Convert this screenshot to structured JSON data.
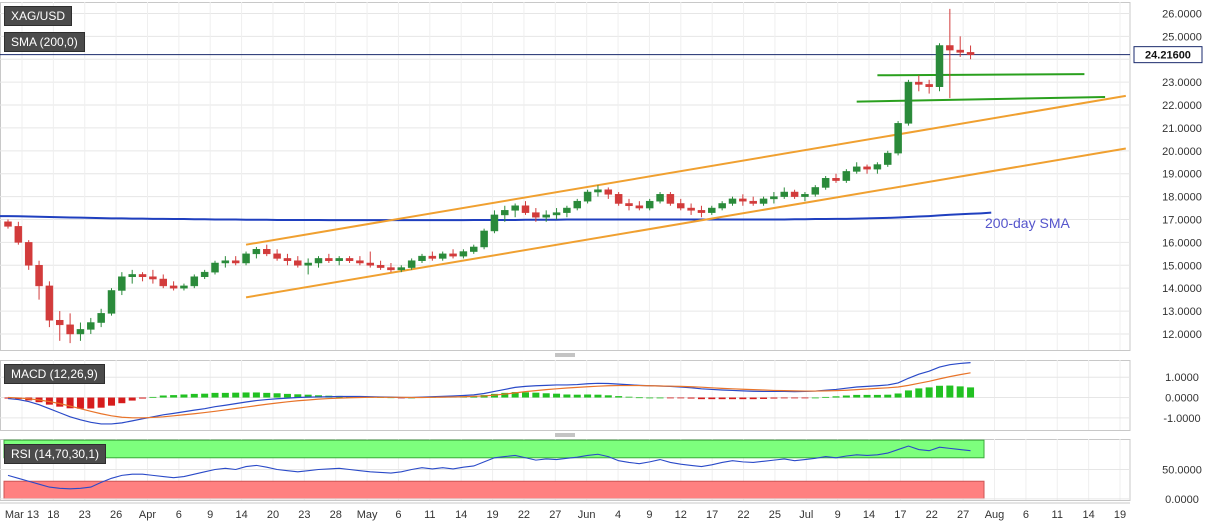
{
  "symbol": "XAG/USD",
  "last_price": "24.21600",
  "chart_data": {
    "type": "candlestick",
    "x_ticks": [
      "Mar 13",
      "18",
      "23",
      "26",
      "Apr",
      "6",
      "9",
      "14",
      "20",
      "23",
      "28",
      "May",
      "6",
      "11",
      "14",
      "19",
      "22",
      "27",
      "Jun",
      "4",
      "9",
      "12",
      "17",
      "22",
      "25",
      "Jul",
      "9",
      "14",
      "17",
      "22",
      "27",
      "Aug",
      "6",
      "11",
      "14",
      "19"
    ],
    "price_ticks": [
      12,
      13,
      14,
      15,
      16,
      17,
      18,
      19,
      20,
      21,
      22,
      23,
      24,
      25,
      26
    ],
    "price_tick_labels": [
      "12.0000",
      "13.0000",
      "14.0000",
      "15.0000",
      "16.0000",
      "17.0000",
      "18.0000",
      "19.0000",
      "20.0000",
      "21.0000",
      "22.0000",
      "23.0000",
      "24.0000",
      "25.0000",
      "26.0000"
    ],
    "price_range": [
      11.3,
      26.5
    ],
    "candles": [
      [
        16.9,
        17.0,
        16.6,
        16.7
      ],
      [
        16.7,
        16.9,
        15.9,
        16.0
      ],
      [
        16.0,
        16.1,
        14.8,
        15.0
      ],
      [
        15.0,
        15.2,
        13.5,
        14.1
      ],
      [
        14.1,
        14.3,
        12.3,
        12.6
      ],
      [
        12.6,
        13.0,
        11.7,
        12.4
      ],
      [
        12.4,
        12.9,
        11.6,
        12.0
      ],
      [
        12.0,
        12.5,
        11.7,
        12.2
      ],
      [
        12.2,
        12.7,
        12.0,
        12.5
      ],
      [
        12.5,
        13.1,
        12.3,
        12.9
      ],
      [
        12.9,
        14.0,
        12.8,
        13.9
      ],
      [
        13.9,
        14.7,
        13.7,
        14.5
      ],
      [
        14.5,
        14.8,
        14.2,
        14.6
      ],
      [
        14.6,
        14.7,
        14.3,
        14.5
      ],
      [
        14.5,
        14.8,
        14.2,
        14.4
      ],
      [
        14.4,
        14.6,
        14.0,
        14.1
      ],
      [
        14.1,
        14.3,
        13.9,
        14.0
      ],
      [
        14.0,
        14.2,
        13.9,
        14.1
      ],
      [
        14.1,
        14.6,
        14.0,
        14.5
      ],
      [
        14.5,
        14.8,
        14.4,
        14.7
      ],
      [
        14.7,
        15.2,
        14.6,
        15.1
      ],
      [
        15.1,
        15.4,
        14.9,
        15.2
      ],
      [
        15.2,
        15.4,
        15.0,
        15.1
      ],
      [
        15.1,
        15.6,
        15.0,
        15.5
      ],
      [
        15.5,
        15.8,
        15.3,
        15.7
      ],
      [
        15.7,
        15.9,
        15.4,
        15.5
      ],
      [
        15.5,
        15.7,
        15.2,
        15.3
      ],
      [
        15.3,
        15.5,
        15.0,
        15.2
      ],
      [
        15.2,
        15.4,
        14.9,
        15.0
      ],
      [
        15.0,
        15.3,
        14.6,
        15.1
      ],
      [
        15.1,
        15.4,
        14.9,
        15.3
      ],
      [
        15.3,
        15.5,
        15.1,
        15.2
      ],
      [
        15.2,
        15.4,
        15.0,
        15.3
      ],
      [
        15.3,
        15.4,
        15.1,
        15.2
      ],
      [
        15.2,
        15.4,
        15.0,
        15.1
      ],
      [
        15.1,
        15.6,
        14.9,
        15.0
      ],
      [
        15.0,
        15.2,
        14.8,
        14.9
      ],
      [
        14.9,
        15.1,
        14.7,
        14.8
      ],
      [
        14.8,
        15.0,
        14.7,
        14.9
      ],
      [
        14.9,
        15.3,
        14.8,
        15.2
      ],
      [
        15.2,
        15.5,
        15.1,
        15.4
      ],
      [
        15.4,
        15.6,
        15.2,
        15.3
      ],
      [
        15.3,
        15.6,
        15.2,
        15.5
      ],
      [
        15.5,
        15.7,
        15.3,
        15.4
      ],
      [
        15.4,
        15.7,
        15.3,
        15.6
      ],
      [
        15.6,
        15.9,
        15.5,
        15.8
      ],
      [
        15.8,
        16.6,
        15.7,
        16.5
      ],
      [
        16.5,
        17.4,
        16.4,
        17.2
      ],
      [
        17.2,
        17.6,
        16.9,
        17.4
      ],
      [
        17.4,
        17.7,
        17.1,
        17.6
      ],
      [
        17.6,
        17.8,
        17.2,
        17.3
      ],
      [
        17.3,
        17.5,
        16.9,
        17.1
      ],
      [
        17.1,
        17.4,
        16.9,
        17.2
      ],
      [
        17.2,
        17.5,
        17.0,
        17.3
      ],
      [
        17.3,
        17.6,
        17.1,
        17.5
      ],
      [
        17.5,
        17.9,
        17.4,
        17.8
      ],
      [
        17.8,
        18.3,
        17.7,
        18.2
      ],
      [
        18.2,
        18.5,
        18.0,
        18.3
      ],
      [
        18.3,
        18.4,
        17.9,
        18.1
      ],
      [
        18.1,
        18.2,
        17.6,
        17.7
      ],
      [
        17.7,
        17.9,
        17.4,
        17.6
      ],
      [
        17.6,
        17.8,
        17.4,
        17.5
      ],
      [
        17.5,
        17.9,
        17.4,
        17.8
      ],
      [
        17.8,
        18.2,
        17.7,
        18.1
      ],
      [
        18.1,
        18.2,
        17.6,
        17.7
      ],
      [
        17.7,
        17.9,
        17.4,
        17.5
      ],
      [
        17.5,
        17.7,
        17.2,
        17.4
      ],
      [
        17.4,
        17.6,
        17.1,
        17.3
      ],
      [
        17.3,
        17.6,
        17.2,
        17.5
      ],
      [
        17.5,
        17.8,
        17.4,
        17.7
      ],
      [
        17.7,
        18.0,
        17.6,
        17.9
      ],
      [
        17.9,
        18.1,
        17.6,
        17.8
      ],
      [
        17.8,
        18.0,
        17.6,
        17.7
      ],
      [
        17.7,
        18.0,
        17.6,
        17.9
      ],
      [
        17.9,
        18.2,
        17.7,
        18.0
      ],
      [
        18.0,
        18.4,
        17.9,
        18.2
      ],
      [
        18.2,
        18.3,
        17.9,
        18.0
      ],
      [
        18.0,
        18.2,
        17.8,
        18.1
      ],
      [
        18.1,
        18.5,
        18.0,
        18.4
      ],
      [
        18.4,
        18.9,
        18.3,
        18.8
      ],
      [
        18.8,
        19.0,
        18.6,
        18.7
      ],
      [
        18.7,
        19.2,
        18.6,
        19.1
      ],
      [
        19.1,
        19.5,
        19.0,
        19.3
      ],
      [
        19.3,
        19.4,
        19.0,
        19.2
      ],
      [
        19.2,
        19.5,
        19.0,
        19.4
      ],
      [
        19.4,
        20.0,
        19.3,
        19.9
      ],
      [
        19.9,
        21.3,
        19.8,
        21.2
      ],
      [
        21.2,
        23.1,
        21.1,
        23.0
      ],
      [
        23.0,
        23.3,
        22.6,
        22.9
      ],
      [
        22.9,
        23.1,
        22.5,
        22.8
      ],
      [
        22.8,
        24.7,
        22.6,
        24.6
      ],
      [
        24.6,
        26.2,
        22.3,
        24.4
      ],
      [
        24.4,
        25.0,
        24.1,
        24.3
      ],
      [
        24.3,
        24.6,
        24.0,
        24.2
      ]
    ],
    "sma200": {
      "name": "200-day SMA",
      "label": "SMA (200,0)",
      "values": [
        17.15,
        17.14,
        17.13,
        17.12,
        17.11,
        17.1,
        17.09,
        17.08,
        17.07,
        17.06,
        17.05,
        17.05,
        17.04,
        17.04,
        17.03,
        17.03,
        17.02,
        17.02,
        17.01,
        17.01,
        17.0,
        17.0,
        17.0,
        16.99,
        16.99,
        16.99,
        16.98,
        16.98,
        16.98,
        16.98,
        16.98,
        16.97,
        16.97,
        16.97,
        16.97,
        16.97,
        16.97,
        16.97,
        16.97,
        16.97,
        16.97,
        16.97,
        16.97,
        16.97,
        16.97,
        16.98,
        16.98,
        16.98,
        16.98,
        16.98,
        16.99,
        16.99,
        16.99,
        16.99,
        17.0,
        17.0,
        17.0,
        17.0,
        17.0,
        17.0,
        17.0,
        17.0,
        17.0,
        17.0,
        17.0,
        17.0,
        17.0,
        17.0,
        17.0,
        17.0,
        17.0,
        17.0,
        17.0,
        17.0,
        17.0,
        17.0,
        17.01,
        17.01,
        17.02,
        17.02,
        17.03,
        17.03,
        17.04,
        17.05,
        17.06,
        17.07,
        17.09,
        17.11,
        17.13,
        17.15,
        17.18,
        17.21,
        17.23,
        17.25,
        17.27,
        17.3
      ]
    },
    "trend_lines": [
      {
        "color": "#f0a030",
        "from": [
          23,
          15.9
        ],
        "to": [
          108,
          22.4
        ]
      },
      {
        "color": "#f0a030",
        "from": [
          23,
          13.6
        ],
        "to": [
          108,
          20.1
        ]
      },
      {
        "color": "#2aa01e",
        "from": [
          82,
          22.15
        ],
        "to": [
          106,
          22.35
        ]
      },
      {
        "color": "#2aa01e",
        "from": [
          84,
          23.3
        ],
        "to": [
          104,
          23.35
        ]
      }
    ],
    "macd": {
      "label": "MACD (12,26,9)",
      "ticks": [
        -1,
        0,
        1
      ],
      "tick_labels": [
        "-1.0000",
        "0.0000",
        "1.0000"
      ],
      "range": [
        -1.6,
        1.85
      ],
      "macd_line": [
        -0.05,
        -0.1,
        -0.2,
        -0.35,
        -0.55,
        -0.75,
        -0.95,
        -1.1,
        -1.22,
        -1.3,
        -1.3,
        -1.25,
        -1.15,
        -1.05,
        -0.95,
        -0.85,
        -0.78,
        -0.7,
        -0.62,
        -0.55,
        -0.45,
        -0.38,
        -0.3,
        -0.22,
        -0.15,
        -0.1,
        -0.06,
        -0.03,
        0.0,
        0.02,
        0.03,
        0.04,
        0.05,
        0.05,
        0.05,
        0.04,
        0.03,
        0.02,
        0.0,
        0.0,
        0.02,
        0.04,
        0.06,
        0.08,
        0.1,
        0.13,
        0.2,
        0.3,
        0.4,
        0.5,
        0.55,
        0.58,
        0.6,
        0.62,
        0.62,
        0.64,
        0.68,
        0.7,
        0.69,
        0.66,
        0.63,
        0.6,
        0.58,
        0.57,
        0.55,
        0.52,
        0.48,
        0.43,
        0.4,
        0.37,
        0.35,
        0.33,
        0.31,
        0.3,
        0.3,
        0.3,
        0.29,
        0.3,
        0.32,
        0.36,
        0.4,
        0.46,
        0.52,
        0.55,
        0.58,
        0.62,
        0.72,
        0.95,
        1.15,
        1.3,
        1.5,
        1.62,
        1.68,
        1.72
      ],
      "signal_line": [
        0.0,
        -0.02,
        -0.06,
        -0.12,
        -0.2,
        -0.3,
        -0.42,
        -0.55,
        -0.68,
        -0.8,
        -0.9,
        -0.97,
        -1.0,
        -1.0,
        -0.98,
        -0.95,
        -0.9,
        -0.85,
        -0.8,
        -0.74,
        -0.68,
        -0.61,
        -0.54,
        -0.47,
        -0.4,
        -0.33,
        -0.27,
        -0.21,
        -0.16,
        -0.12,
        -0.08,
        -0.05,
        -0.03,
        -0.01,
        0.0,
        0.01,
        0.01,
        0.01,
        0.01,
        0.0,
        0.0,
        0.01,
        0.02,
        0.03,
        0.04,
        0.06,
        0.08,
        0.12,
        0.17,
        0.23,
        0.29,
        0.34,
        0.39,
        0.43,
        0.47,
        0.5,
        0.53,
        0.56,
        0.58,
        0.59,
        0.59,
        0.59,
        0.58,
        0.57,
        0.56,
        0.55,
        0.53,
        0.51,
        0.48,
        0.45,
        0.43,
        0.41,
        0.39,
        0.37,
        0.35,
        0.34,
        0.33,
        0.32,
        0.32,
        0.33,
        0.34,
        0.36,
        0.39,
        0.42,
        0.45,
        0.48,
        0.52,
        0.6,
        0.7,
        0.8,
        0.92,
        1.03,
        1.13,
        1.22
      ],
      "histogram": [
        -0.05,
        -0.08,
        -0.14,
        -0.23,
        -0.35,
        -0.45,
        -0.53,
        -0.55,
        -0.54,
        -0.5,
        -0.4,
        -0.28,
        -0.15,
        -0.05,
        0.03,
        0.1,
        0.12,
        0.15,
        0.18,
        0.19,
        0.23,
        0.23,
        0.24,
        0.25,
        0.25,
        0.23,
        0.21,
        0.18,
        0.16,
        0.14,
        0.11,
        0.09,
        0.08,
        0.06,
        0.05,
        0.03,
        0.02,
        0.01,
        -0.01,
        0.0,
        0.02,
        0.03,
        0.04,
        0.05,
        0.06,
        0.07,
        0.12,
        0.18,
        0.23,
        0.27,
        0.26,
        0.24,
        0.21,
        0.19,
        0.15,
        0.14,
        0.15,
        0.14,
        0.11,
        0.07,
        0.04,
        0.01,
        0.0,
        0.0,
        -0.01,
        -0.03,
        -0.05,
        -0.08,
        -0.08,
        -0.08,
        -0.08,
        -0.08,
        -0.08,
        -0.07,
        -0.05,
        -0.04,
        -0.04,
        -0.02,
        0.0,
        0.03,
        0.06,
        0.1,
        0.13,
        0.13,
        0.13,
        0.14,
        0.2,
        0.35,
        0.45,
        0.5,
        0.58,
        0.59,
        0.55,
        0.5
      ]
    },
    "rsi": {
      "label": "RSI (14,70,30,1)",
      "ticks": [
        0,
        50
      ],
      "tick_labels": [
        "0.0000",
        "50.0000"
      ],
      "range": [
        -2,
        102
      ],
      "overbought": 70,
      "oversold": 30,
      "values": [
        40,
        35,
        30,
        25,
        20,
        18,
        17,
        18,
        20,
        28,
        35,
        40,
        42,
        42,
        40,
        38,
        36,
        38,
        42,
        46,
        50,
        52,
        50,
        55,
        57,
        54,
        50,
        48,
        46,
        48,
        50,
        51,
        52,
        50,
        48,
        46,
        45,
        44,
        46,
        50,
        53,
        51,
        53,
        51,
        54,
        56,
        63,
        70,
        72,
        74,
        70,
        66,
        68,
        67,
        69,
        71,
        74,
        76,
        72,
        65,
        62,
        60,
        63,
        67,
        62,
        59,
        57,
        55,
        58,
        62,
        65,
        63,
        62,
        64,
        66,
        68,
        65,
        67,
        69,
        72,
        70,
        73,
        75,
        74,
        75,
        78,
        84,
        90,
        84,
        82,
        88,
        86,
        84,
        82
      ]
    },
    "annotations": [
      {
        "text": "200-day SMA",
        "color": "#5555cc"
      }
    ]
  }
}
